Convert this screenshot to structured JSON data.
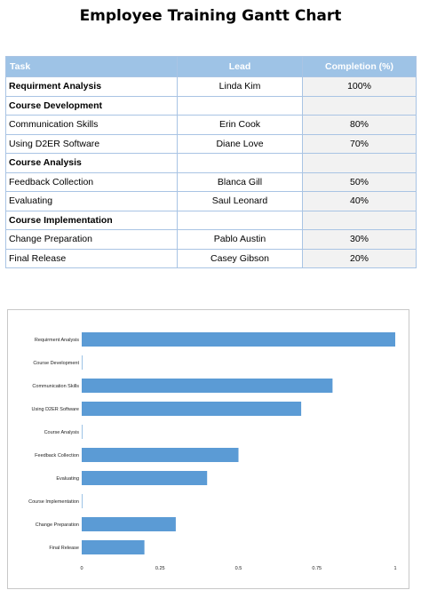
{
  "title": "Employee Training Gantt Chart",
  "table": {
    "headers": [
      "Task",
      "Lead",
      "Completion (%)"
    ],
    "rows": [
      {
        "task": "Requirment Analysis",
        "lead": "Linda Kim",
        "completion": "100%",
        "group": false,
        "bold": true
      },
      {
        "task": "Course Development",
        "lead": "",
        "completion": "",
        "group": true
      },
      {
        "task": "Communication Skills",
        "lead": "Erin Cook",
        "completion": "80%",
        "group": false
      },
      {
        "task": "Using D2ER Software",
        "lead": "Diane Love",
        "completion": "70%",
        "group": false
      },
      {
        "task": "Course Analysis",
        "lead": "",
        "completion": "",
        "group": true
      },
      {
        "task": "Feedback Collection",
        "lead": "Blanca Gill",
        "completion": "50%",
        "group": false
      },
      {
        "task": "Evaluating",
        "lead": "Saul Leonard",
        "completion": "40%",
        "group": false
      },
      {
        "task": "Course Implementation",
        "lead": "",
        "completion": "",
        "group": true
      },
      {
        "task": "Change Preparation",
        "lead": "Pablo Austin",
        "completion": "30%",
        "group": false
      },
      {
        "task": "Final Release",
        "lead": "Casey Gibson",
        "completion": "20%",
        "group": false
      }
    ]
  },
  "chart_data": {
    "type": "bar",
    "orientation": "horizontal",
    "categories": [
      "Requirment Analysis",
      "Course Development",
      "Communication Skills",
      "Using D2ER Software",
      "Course Analysis",
      "Feedback Collection",
      "Evaluating",
      "Course Implementation",
      "Change Preparation",
      "Final Release"
    ],
    "values": [
      1,
      0,
      0.8,
      0.7,
      0,
      0.5,
      0.4,
      0,
      0.3,
      0.2
    ],
    "xlim": [
      0,
      1
    ],
    "xticks": [
      "0",
      "0.25",
      "0.5",
      "0.75",
      "1"
    ],
    "xtick_values": [
      0,
      0.25,
      0.5,
      0.75,
      1
    ],
    "bar_color": "#5b9bd5",
    "grid": false,
    "legend": "none"
  }
}
